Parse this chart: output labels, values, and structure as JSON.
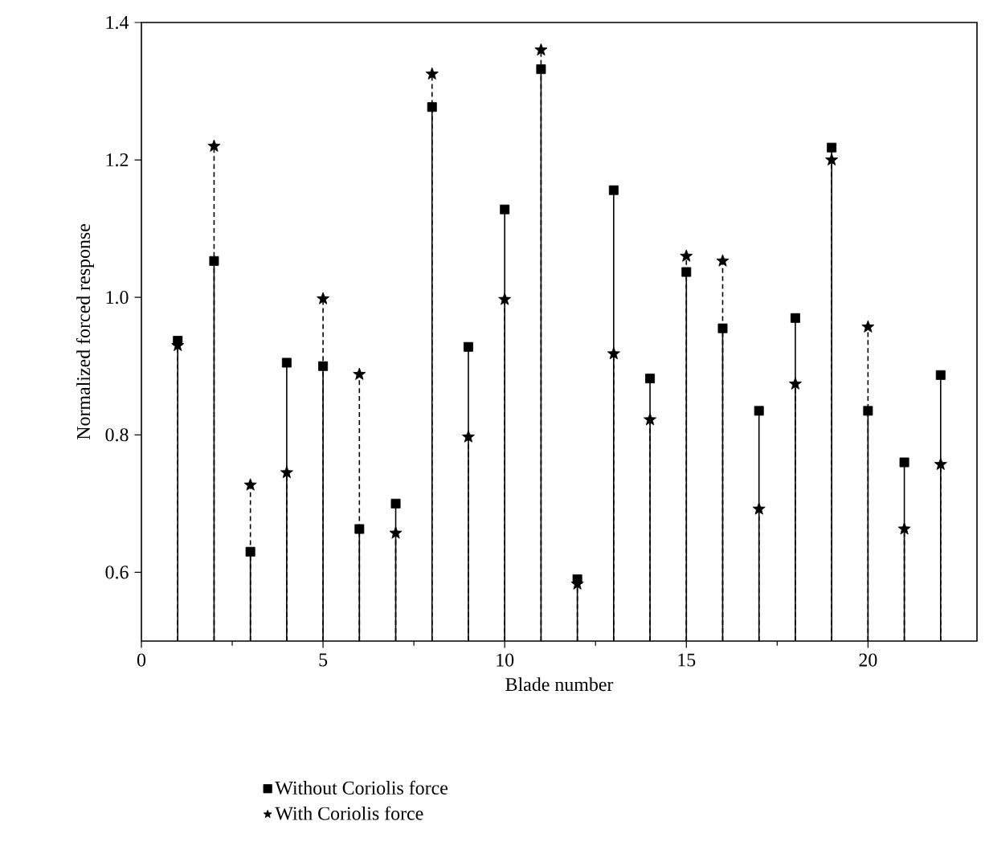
{
  "chart_data": {
    "type": "lollipop",
    "xlabel": "Blade number",
    "ylabel": "Normalized forced response",
    "x": [
      1,
      2,
      3,
      4,
      5,
      6,
      7,
      8,
      9,
      10,
      11,
      12,
      13,
      14,
      15,
      16,
      17,
      18,
      19,
      20,
      21,
      22
    ],
    "xlim": [
      0,
      23
    ],
    "xticks": [
      0,
      5,
      10,
      15,
      20
    ],
    "ylim": [
      0.5,
      1.4
    ],
    "yticks": [
      {
        "value": 0.6,
        "label": "0.6"
      },
      {
        "value": 0.8,
        "label": "0.8"
      },
      {
        "value": 1.0,
        "label": "1.0"
      },
      {
        "value": 1.2,
        "label": "1.2"
      },
      {
        "value": 1.4,
        "label": "1.4"
      }
    ],
    "legend": "bottom",
    "grid": false,
    "series": [
      {
        "name": "Without Coriolis force",
        "color": "#000000",
        "marker": "square",
        "line_style": "solid",
        "values": [
          0.937,
          1.053,
          0.63,
          0.905,
          0.9,
          0.663,
          0.7,
          1.277,
          0.928,
          1.128,
          1.332,
          0.59,
          1.156,
          0.882,
          1.037,
          0.955,
          0.835,
          0.97,
          1.218,
          0.835,
          0.76,
          0.887
        ]
      },
      {
        "name": "With Coriolis force",
        "color": "#000000",
        "marker": "star",
        "line_style": "dashed",
        "values": [
          0.93,
          1.22,
          0.727,
          0.745,
          0.998,
          0.888,
          0.657,
          1.325,
          0.797,
          0.997,
          1.36,
          0.583,
          0.918,
          0.822,
          1.06,
          1.053,
          0.692,
          0.874,
          1.2,
          0.957,
          0.663,
          0.757
        ]
      }
    ]
  }
}
